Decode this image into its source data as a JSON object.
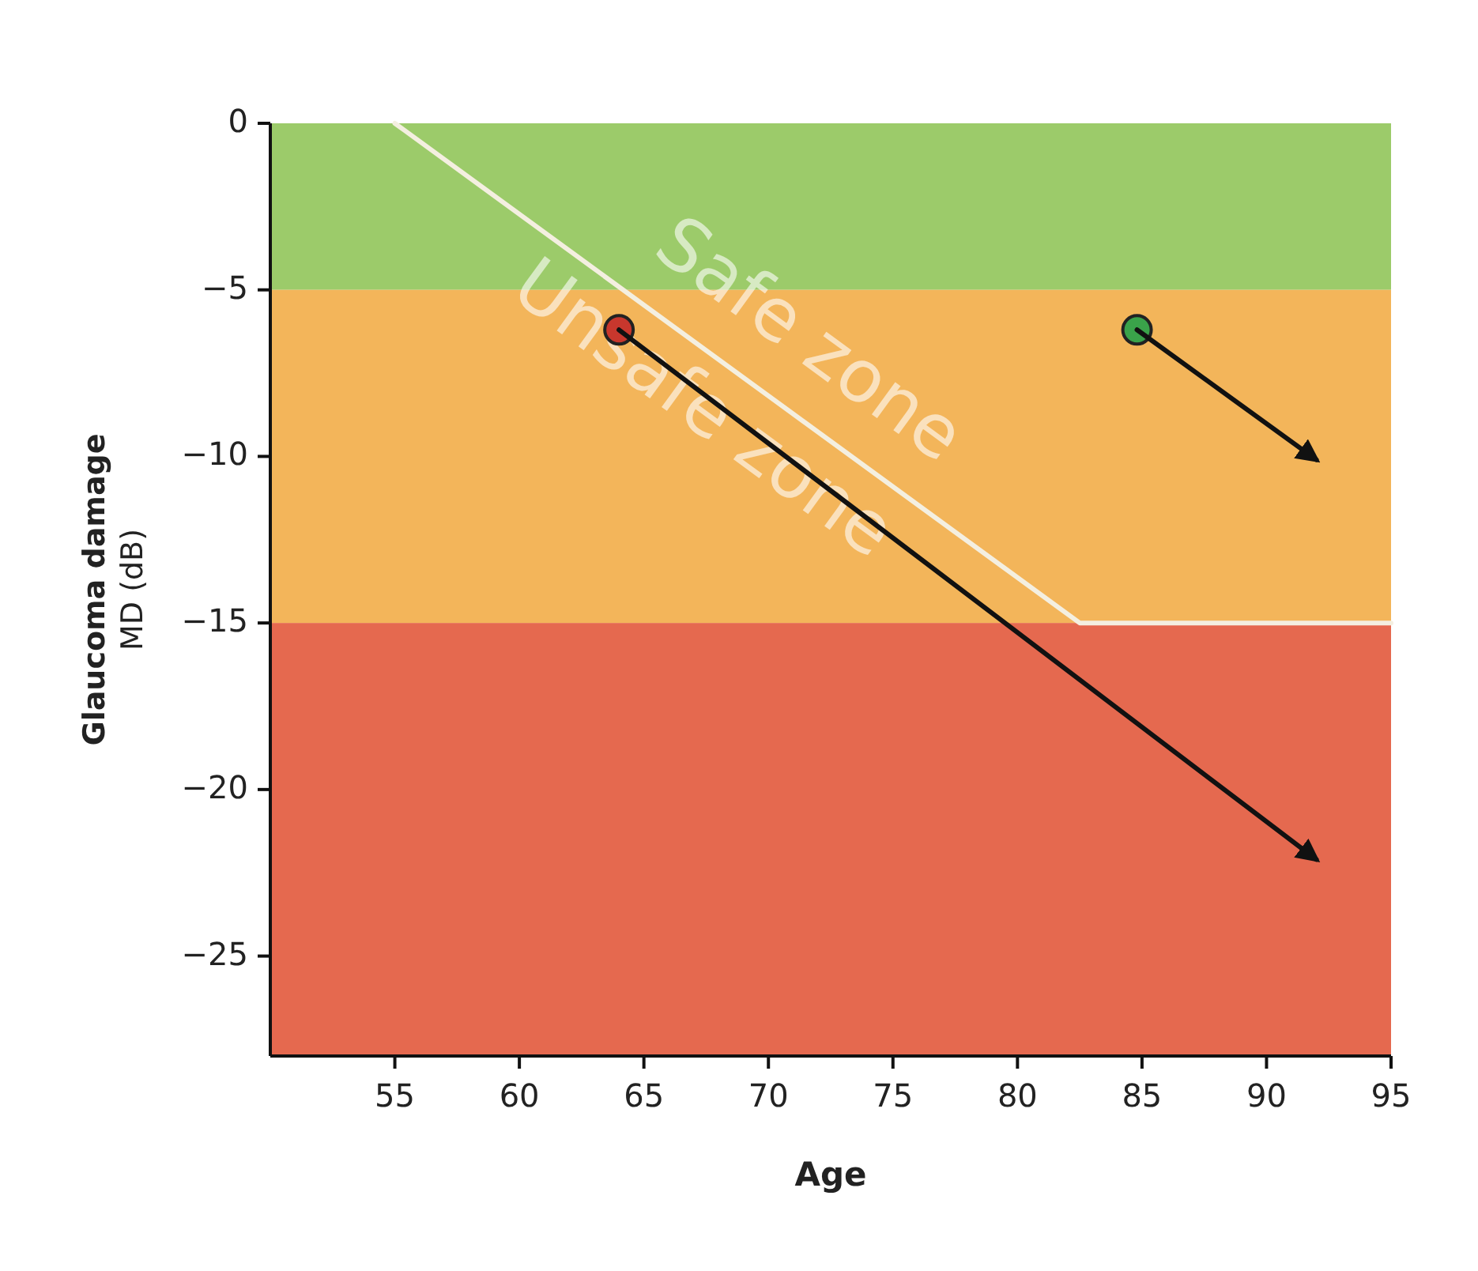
{
  "chart_data": {
    "type": "scatter",
    "xlabel": "Age",
    "ylabel": "Glaucoma damage\nMD (dB)",
    "xlim": [
      50,
      95
    ],
    "xticks": [
      55,
      60,
      65,
      70,
      75,
      80,
      85,
      90,
      95
    ],
    "ylim": [
      -28,
      0
    ],
    "yticks": [
      0,
      -5,
      -10,
      -15,
      -20,
      -25
    ],
    "bands": [
      {
        "axis": "y",
        "from": -5,
        "to": 0,
        "color": "#9ccb6a"
      },
      {
        "axis": "y",
        "from": -15,
        "to": -5,
        "color": "#f3b55a"
      },
      {
        "axis": "y",
        "from": -28,
        "to": -15,
        "color": "#e5694f"
      }
    ],
    "series": [
      {
        "type": "line",
        "marker": "none",
        "color": "#f4efe0",
        "x": [
          55,
          82.5,
          95
        ],
        "values": [
          0,
          -15,
          -15
        ]
      },
      {
        "type": "line",
        "marker": "none",
        "color": "#111111",
        "x": [
          64,
          92
        ],
        "values": [
          -6.2,
          -22.1
        ]
      },
      {
        "type": "line",
        "marker": "none",
        "color": "#111111",
        "x": [
          84.8,
          92
        ],
        "values": [
          -6.2,
          -10.1
        ]
      },
      {
        "color": "#c8372d",
        "x": [
          64
        ],
        "values": [
          -6.2
        ]
      },
      {
        "color": "#3aa34a",
        "x": [
          84.8
        ],
        "values": [
          -6.2
        ]
      }
    ],
    "annotations": [
      "Safe zone",
      "Unsafe zone"
    ],
    "grid": false,
    "marker": "circle"
  }
}
